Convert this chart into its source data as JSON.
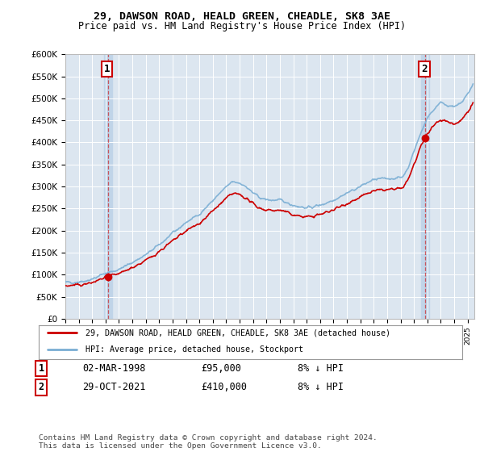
{
  "title1": "29, DAWSON ROAD, HEALD GREEN, CHEADLE, SK8 3AE",
  "title2": "Price paid vs. HM Land Registry's House Price Index (HPI)",
  "ylabel_ticks": [
    "£0",
    "£50K",
    "£100K",
    "£150K",
    "£200K",
    "£250K",
    "£300K",
    "£350K",
    "£400K",
    "£450K",
    "£500K",
    "£550K",
    "£600K"
  ],
  "ytick_values": [
    0,
    50000,
    100000,
    150000,
    200000,
    250000,
    300000,
    350000,
    400000,
    450000,
    500000,
    550000,
    600000
  ],
  "sale1_date": 1998.17,
  "sale1_price": 95000,
  "sale2_date": 2021.83,
  "sale2_price": 410000,
  "hpi_color": "#7aaed4",
  "price_color": "#cc0000",
  "bg_color": "#dce6f0",
  "highlight_color": "#c0d4e8",
  "legend_label1": "29, DAWSON ROAD, HEALD GREEN, CHEADLE, SK8 3AE (detached house)",
  "legend_label2": "HPI: Average price, detached house, Stockport",
  "table_row1": [
    "1",
    "02-MAR-1998",
    "£95,000",
    "8% ↓ HPI"
  ],
  "table_row2": [
    "2",
    "29-OCT-2021",
    "£410,000",
    "8% ↓ HPI"
  ],
  "footnote": "Contains HM Land Registry data © Crown copyright and database right 2024.\nThis data is licensed under the Open Government Licence v3.0.",
  "xmin": 1995,
  "xmax": 2025.5,
  "ymin": 0,
  "ymax": 600000
}
